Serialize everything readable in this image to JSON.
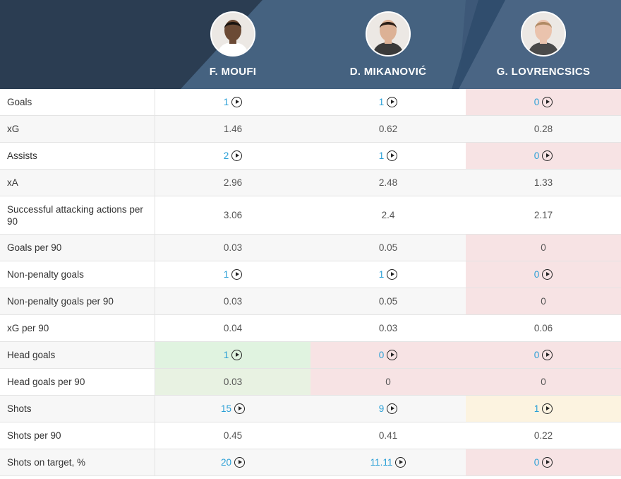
{
  "players": [
    {
      "name": "F. MOUFI",
      "skin": "#6b4a35",
      "hair": "#1a1410",
      "shirt": "#ffffff"
    },
    {
      "name": "D. MIKANOVIĆ",
      "skin": "#dcb195",
      "hair": "#2a1e16",
      "shirt": "#3a3a3a"
    },
    {
      "name": "G. LOVRENCSICS",
      "skin": "#eac3ad",
      "hair": "#b08a64",
      "shirt": "#4a4a4a"
    }
  ],
  "colors": {
    "link": "#2a9fd6",
    "header": "#3d5878",
    "worse": "#f7e3e4",
    "better": "#e0f3e0",
    "neutral": "#fcf3e0"
  },
  "rows": [
    {
      "label": "Goals",
      "values": [
        {
          "v": "1",
          "link": true
        },
        {
          "v": "1",
          "link": true
        },
        {
          "v": "0",
          "link": true,
          "hl": "red"
        }
      ]
    },
    {
      "label": "xG",
      "values": [
        {
          "v": "1.46"
        },
        {
          "v": "0.62"
        },
        {
          "v": "0.28"
        }
      ]
    },
    {
      "label": "Assists",
      "values": [
        {
          "v": "2",
          "link": true
        },
        {
          "v": "1",
          "link": true
        },
        {
          "v": "0",
          "link": true,
          "hl": "red"
        }
      ]
    },
    {
      "label": "xA",
      "values": [
        {
          "v": "2.96"
        },
        {
          "v": "2.48"
        },
        {
          "v": "1.33"
        }
      ]
    },
    {
      "label": "Successful attacking actions per 90",
      "values": [
        {
          "v": "3.06"
        },
        {
          "v": "2.4"
        },
        {
          "v": "2.17"
        }
      ]
    },
    {
      "label": "Goals per 90",
      "values": [
        {
          "v": "0.03"
        },
        {
          "v": "0.05"
        },
        {
          "v": "0",
          "hl": "red"
        }
      ]
    },
    {
      "label": "Non-penalty goals",
      "values": [
        {
          "v": "1",
          "link": true
        },
        {
          "v": "1",
          "link": true
        },
        {
          "v": "0",
          "link": true,
          "hl": "red"
        }
      ]
    },
    {
      "label": "Non-penalty goals per 90",
      "values": [
        {
          "v": "0.03"
        },
        {
          "v": "0.05"
        },
        {
          "v": "0",
          "hl": "red"
        }
      ]
    },
    {
      "label": "xG per 90",
      "values": [
        {
          "v": "0.04"
        },
        {
          "v": "0.03"
        },
        {
          "v": "0.06"
        }
      ]
    },
    {
      "label": "Head goals",
      "values": [
        {
          "v": "1",
          "link": true,
          "hl": "green"
        },
        {
          "v": "0",
          "link": true,
          "hl": "red"
        },
        {
          "v": "0",
          "link": true,
          "hl": "red"
        }
      ]
    },
    {
      "label": "Head goals per 90",
      "values": [
        {
          "v": "0.03",
          "hl": "green2"
        },
        {
          "v": "0",
          "hl": "red"
        },
        {
          "v": "0",
          "hl": "red"
        }
      ]
    },
    {
      "label": "Shots",
      "values": [
        {
          "v": "15",
          "link": true
        },
        {
          "v": "9",
          "link": true
        },
        {
          "v": "1",
          "link": true,
          "hl": "yellow"
        }
      ]
    },
    {
      "label": "Shots per 90",
      "values": [
        {
          "v": "0.45"
        },
        {
          "v": "0.41"
        },
        {
          "v": "0.22"
        }
      ]
    },
    {
      "label": "Shots on target, %",
      "values": [
        {
          "v": "20",
          "link": true
        },
        {
          "v": "11.11",
          "link": true
        },
        {
          "v": "0",
          "link": true,
          "hl": "red"
        }
      ]
    }
  ]
}
